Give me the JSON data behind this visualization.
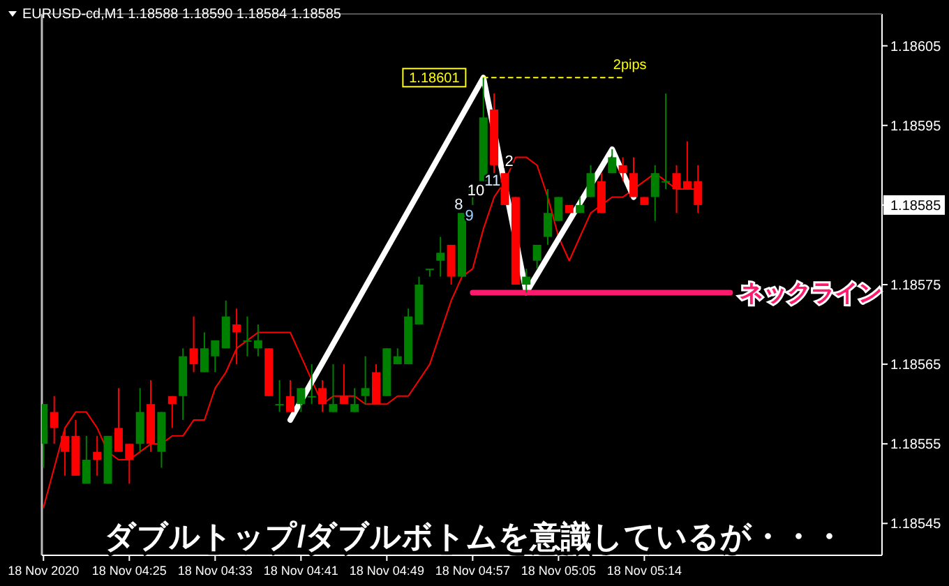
{
  "chart_data": {
    "type": "candlestick",
    "title": "EURUSD-cd,M1  1.18588 1.18590 1.18584 1.18585",
    "categories": [
      "18 Nov 2020",
      null,
      null,
      null,
      null,
      null,
      null,
      null,
      "18 Nov 04:25",
      null,
      null,
      null,
      null,
      null,
      null,
      null,
      "18 Nov 04:33",
      null,
      null,
      null,
      null,
      null,
      null,
      null,
      "18 Nov 04:41",
      null,
      null,
      null,
      null,
      null,
      null,
      null,
      "18 Nov 04:49",
      null,
      null,
      null,
      null,
      null,
      null,
      null,
      "18 Nov 04:57",
      null,
      null,
      null,
      null,
      null,
      null,
      null,
      "18 Nov 05:05",
      null,
      null,
      null,
      null,
      null,
      null,
      null,
      "18 Nov 05:14",
      null,
      null,
      null,
      null,
      null,
      null,
      null,
      null,
      null,
      null,
      null,
      null,
      null,
      null,
      null,
      null,
      null,
      null,
      null,
      null,
      null,
      null
    ],
    "ohlc": [
      [
        1.18555,
        1.1856,
        1.18552,
        1.1856
      ],
      [
        1.18559,
        1.18561,
        1.18555,
        1.18557
      ],
      [
        1.18556,
        1.18557,
        1.18551,
        1.18554
      ],
      [
        1.18556,
        1.18558,
        1.18551,
        1.18551
      ],
      [
        1.1855,
        1.18556,
        1.1855,
        1.18553
      ],
      [
        1.18554,
        1.18556,
        1.18551,
        1.18553
      ],
      [
        1.1855,
        1.18556,
        1.1855,
        1.18556
      ],
      [
        1.18557,
        1.18562,
        1.18554,
        1.18554
      ],
      [
        1.18555,
        1.18555,
        1.1855,
        1.18553
      ],
      [
        1.18555,
        1.18562,
        1.18554,
        1.18559
      ],
      [
        1.1856,
        1.18563,
        1.18554,
        1.18555
      ],
      [
        1.18554,
        1.18559,
        1.18552,
        1.18559
      ],
      [
        1.18561,
        1.18561,
        1.18557,
        1.1856
      ],
      [
        1.18561,
        1.18567,
        1.18558,
        1.18566
      ],
      [
        1.18567,
        1.18571,
        1.18564,
        1.18565
      ],
      [
        1.18564,
        1.18569,
        1.18564,
        1.18567
      ],
      [
        1.18566,
        1.18568,
        1.18564,
        1.18568
      ],
      [
        1.18567,
        1.18573,
        1.18567,
        1.18571
      ],
      [
        1.1857,
        1.18572,
        1.18565,
        1.18569
      ],
      [
        1.18568,
        1.18571,
        1.18566,
        1.18568
      ],
      [
        1.18567,
        1.1857,
        1.18566,
        1.18568
      ],
      [
        1.18567,
        1.18567,
        1.18561,
        1.18561
      ],
      [
        1.1856,
        1.18563,
        1.18559,
        1.1856
      ],
      [
        1.18561,
        1.18563,
        1.18559,
        1.18559
      ],
      [
        1.1856,
        1.18562,
        1.18559,
        1.18562
      ],
      [
        1.18561,
        1.18565,
        1.1856,
        1.18561
      ],
      [
        1.18562,
        1.18563,
        1.18559,
        1.1856
      ],
      [
        1.18559,
        1.18565,
        1.18559,
        1.1856
      ],
      [
        1.18561,
        1.18565,
        1.1856,
        1.1856
      ],
      [
        1.18559,
        1.18562,
        1.18559,
        1.1856
      ],
      [
        1.18561,
        1.18566,
        1.1856,
        1.18562
      ],
      [
        1.18564,
        1.18565,
        1.1856,
        1.1856
      ],
      [
        1.18561,
        1.18567,
        1.18561,
        1.18567
      ],
      [
        1.18565,
        1.18567,
        1.18565,
        1.18566
      ],
      [
        1.18565,
        1.18572,
        1.18565,
        1.18571
      ],
      [
        1.1857,
        1.18576,
        1.1857,
        1.18575
      ],
      [
        1.18577,
        1.18577,
        1.18576,
        1.18577
      ],
      [
        1.18578,
        1.18581,
        1.18576,
        1.18579
      ],
      [
        1.1858,
        1.1858,
        1.18575,
        1.18576
      ],
      [
        1.18576,
        1.18584,
        1.18576,
        1.18584
      ],
      [
        1.18587,
        1.18587,
        1.18585,
        1.18587
      ],
      [
        1.18588,
        1.18601,
        1.18588,
        1.18596
      ],
      [
        1.18597,
        1.18599,
        1.18589,
        1.1859
      ],
      [
        1.18589,
        1.18589,
        1.18585,
        1.18585
      ],
      [
        1.18586,
        1.18586,
        1.18575,
        1.18575
      ],
      [
        1.18575,
        1.18577,
        1.18574,
        1.18576
      ],
      [
        1.18578,
        1.1858,
        1.18577,
        1.1858
      ],
      [
        1.18581,
        1.18587,
        1.1858,
        1.18584
      ],
      [
        1.18583,
        1.18586,
        1.18583,
        1.18586
      ],
      [
        1.18585,
        1.18585,
        1.18584,
        1.18584
      ],
      [
        1.18584,
        1.18586,
        1.18584,
        1.18585
      ],
      [
        1.18586,
        1.1859,
        1.18586,
        1.18589
      ],
      [
        1.18588,
        1.18589,
        1.18584,
        1.18584
      ],
      [
        1.18589,
        1.18592,
        1.18589,
        1.18591
      ],
      [
        1.1859,
        1.18591,
        1.18588,
        1.18589
      ],
      [
        1.18589,
        1.18591,
        1.18586,
        1.18586
      ],
      [
        1.18586,
        1.18586,
        1.18585,
        1.18585
      ],
      [
        1.18586,
        1.1859,
        1.18583,
        1.18589
      ],
      [
        1.18588,
        1.18599,
        1.18587,
        1.18588
      ],
      [
        1.18589,
        1.1859,
        1.18584,
        1.18587
      ],
      [
        1.18588,
        1.18593,
        1.18587,
        1.18587
      ],
      [
        1.18588,
        1.1859,
        1.18584,
        1.18585
      ],
      null,
      null,
      null,
      null,
      null,
      null,
      null,
      null,
      null,
      null,
      null,
      null,
      null,
      null,
      null,
      null,
      null
    ],
    "series": [
      {
        "type": "line",
        "color": "#ff0000",
        "values": [
          1.18547,
          1.18552,
          1.18557,
          1.18559,
          1.18559,
          1.18557,
          1.18554,
          1.18553,
          1.18553,
          1.18554,
          1.18555,
          1.18555,
          1.18556,
          1.18556,
          1.18558,
          1.18558,
          1.18562,
          1.18564,
          1.18567,
          1.18568,
          1.18569,
          1.18569,
          1.18569,
          1.18569,
          1.18566,
          1.18563,
          1.1856,
          1.18561,
          1.18561,
          1.18561,
          1.1856,
          1.1856,
          1.1856,
          1.18561,
          1.18561,
          1.18563,
          1.18565,
          1.18569,
          1.18573,
          1.18576,
          1.18577,
          1.18582,
          1.18586,
          1.18588,
          1.18591,
          1.18591,
          1.1859,
          1.18586,
          1.18581,
          1.18578,
          1.18581,
          1.18584,
          1.18585,
          1.18586,
          1.18586,
          1.18587,
          1.18588,
          1.18589,
          1.18588,
          1.18587,
          1.18587,
          1.18587,
          null,
          null,
          null,
          null,
          null,
          null,
          null,
          null,
          null,
          null,
          null,
          null,
          null,
          null,
          null,
          null,
          null
        ]
      },
      {
        "type": "line",
        "color": "#ffffff",
        "values": [
          null,
          null,
          null,
          null,
          null,
          null,
          null,
          null,
          null,
          null,
          null,
          null,
          null,
          null,
          null,
          null,
          null,
          null,
          null,
          null,
          null,
          null,
          null,
          1.18558,
          null,
          null,
          null,
          null,
          null,
          null,
          null,
          null,
          null,
          null,
          null,
          null,
          null,
          null,
          null,
          null,
          null,
          1.18601,
          null,
          null,
          null,
          1.18574,
          null,
          null,
          null,
          null,
          null,
          null,
          null,
          1.18592,
          null,
          1.18586,
          null,
          null,
          null,
          null,
          null,
          null,
          null,
          null,
          null,
          null,
          null,
          null,
          null,
          null,
          null,
          null,
          null,
          null,
          null,
          null,
          null,
          null,
          null
        ]
      },
      {
        "type": "line",
        "name": "ネックライン",
        "color": "#ff1a6e",
        "values": [
          null,
          null,
          null,
          null,
          null,
          null,
          null,
          null,
          null,
          null,
          null,
          null,
          null,
          null,
          null,
          null,
          null,
          null,
          null,
          null,
          null,
          null,
          null,
          null,
          null,
          null,
          null,
          null,
          null,
          null,
          null,
          null,
          null,
          null,
          null,
          null,
          null,
          null,
          null,
          null,
          1.18574,
          null,
          null,
          null,
          null,
          null,
          null,
          null,
          null,
          null,
          null,
          null,
          null,
          null,
          null,
          null,
          null,
          null,
          null,
          null,
          null,
          null,
          null,
          null,
          1.18574,
          null,
          null,
          null,
          null,
          null,
          null,
          null,
          null,
          null,
          null,
          null,
          null,
          null,
          null
        ]
      },
      {
        "type": "line",
        "color": "#ffff00",
        "line_style": "dashed",
        "values": [
          null,
          null,
          null,
          null,
          null,
          null,
          null,
          null,
          null,
          null,
          null,
          null,
          null,
          null,
          null,
          null,
          null,
          null,
          null,
          null,
          null,
          null,
          null,
          null,
          null,
          null,
          null,
          null,
          null,
          null,
          null,
          null,
          null,
          null,
          null,
          null,
          null,
          null,
          null,
          null,
          null,
          1.18601,
          null,
          null,
          null,
          null,
          null,
          null,
          null,
          null,
          null,
          null,
          null,
          null,
          1.18601,
          null,
          null,
          null,
          null,
          null,
          null,
          null,
          null,
          null,
          null,
          null,
          null,
          null,
          null,
          null,
          null,
          null,
          null,
          null,
          null,
          null,
          null,
          null,
          null
        ]
      }
    ],
    "ylim": [
      1.18541,
      1.18609
    ],
    "yticks": [
      1.18545,
      1.18555,
      1.18565,
      1.18575,
      1.18585,
      1.18595,
      1.18605
    ],
    "annotations": [
      "1.18601",
      "2pips",
      "8",
      "9",
      "10",
      "11",
      "2",
      "ダブルトップ/ダブルボトムを意識しているが・・・"
    ]
  }
}
